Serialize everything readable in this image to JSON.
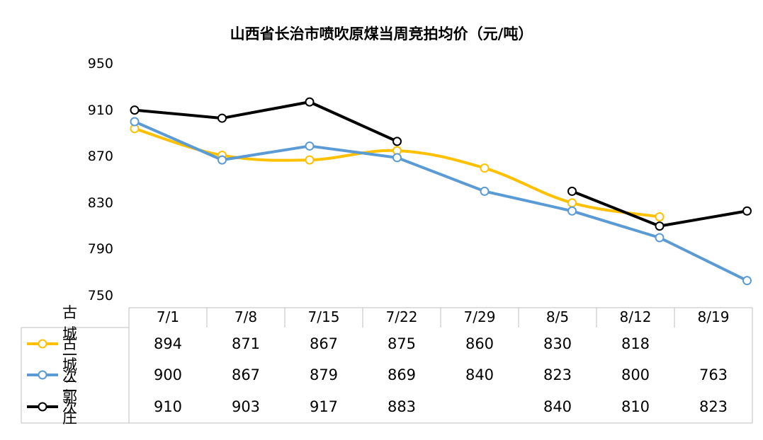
{
  "chart_data": {
    "type": "line",
    "title": "山西省长治市喷吹原煤当周竞拍均价（元/吨）",
    "categories": [
      "7/1",
      "7/8",
      "7/15",
      "7/22",
      "7/29",
      "8/5",
      "8/12",
      "8/19"
    ],
    "yticks": [
      "950",
      "910",
      "870",
      "830",
      "790",
      "750"
    ],
    "ylim": [
      750,
      950
    ],
    "series": [
      {
        "name": "古城一次",
        "color": "#FFC000",
        "smooth": true,
        "values": [
          894,
          871,
          867,
          875,
          860,
          830,
          818,
          null
        ],
        "labels": [
          "894",
          "871",
          "867",
          "875",
          "860",
          "830",
          "818",
          ""
        ]
      },
      {
        "name": "古城二次",
        "color": "#5B9BD5",
        "smooth": false,
        "values": [
          900,
          867,
          879,
          869,
          840,
          823,
          800,
          763
        ],
        "labels": [
          "900",
          "867",
          "879",
          "869",
          "840",
          "823",
          "800",
          "763"
        ]
      },
      {
        "name": "郭庄",
        "color": "#000000",
        "smooth": false,
        "values": [
          910,
          903,
          917,
          883,
          null,
          840,
          810,
          823
        ],
        "labels": [
          "910",
          "903",
          "917",
          "883",
          "",
          "840",
          "810",
          "823"
        ]
      }
    ],
    "legend": "data-table"
  }
}
